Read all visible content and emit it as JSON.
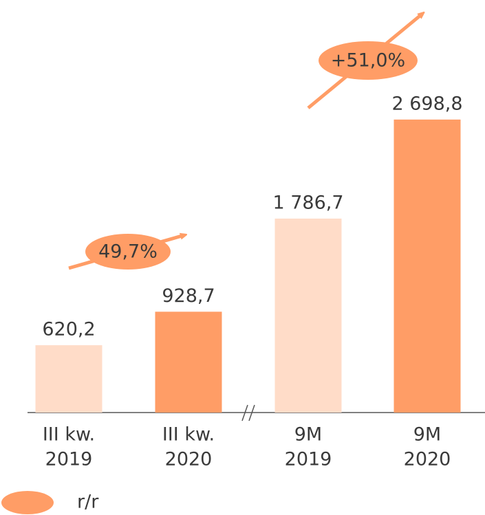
{
  "chart_data": {
    "type": "bar",
    "categories": [
      [
        "III kw.",
        "2019"
      ],
      [
        "III kw.",
        "2020"
      ],
      [
        "9M",
        "2019"
      ],
      [
        "9M",
        "2020"
      ]
    ],
    "values": [
      620.2,
      928.7,
      1786.7,
      2698.8
    ],
    "value_labels": [
      "620,2",
      "928,7",
      "1 786,7",
      "2 698,8"
    ],
    "colors": [
      "#ffdcc8",
      "#ff9d66",
      "#ffdcc8",
      "#ff9d66"
    ],
    "ylim": [
      0,
      3800
    ],
    "annotations": [
      "49,7%",
      "+51,0%"
    ],
    "legend": "r/r"
  }
}
